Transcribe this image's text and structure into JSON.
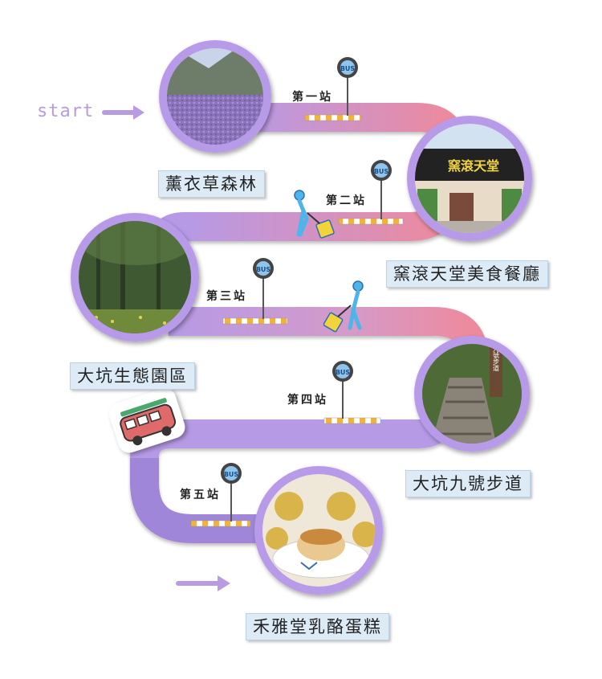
{
  "start_label": "start",
  "bus_sign": "BUS",
  "stops": [
    {
      "stop": "第一站",
      "place": "薰衣草森林"
    },
    {
      "stop": "第二站",
      "place": "窯滾天堂美食餐廳"
    },
    {
      "stop": "第三站",
      "place": "大坑生態園區"
    },
    {
      "stop": "第四站",
      "place": "大坑九號步道"
    },
    {
      "stop": "第五站",
      "place": "禾雅堂乳酪蛋糕"
    }
  ],
  "photo_signs": {
    "restaurant": "窯滾天堂",
    "trail": "九號步道"
  },
  "colors": {
    "road_purple": "#b69ae6",
    "road_pink": "#ee8a9d",
    "circle_ring": "#b79be8",
    "label_bg": "#dcebf6",
    "arrow": "#b89be0"
  }
}
